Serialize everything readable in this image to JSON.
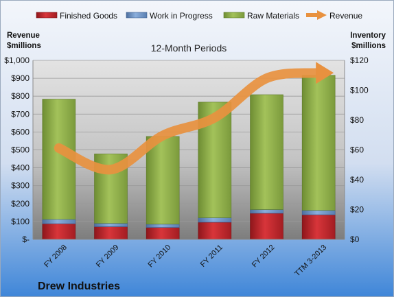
{
  "legend": {
    "items": [
      {
        "label": "Finished Goods",
        "color": "#c0272d",
        "kind": "bar"
      },
      {
        "label": "Work in Progress",
        "color": "#6f95cc",
        "kind": "bar"
      },
      {
        "label": "Raw Materials",
        "color": "#8fb04a",
        "kind": "bar"
      },
      {
        "label": "Revenue",
        "color": "#e8913f",
        "kind": "arrow"
      }
    ]
  },
  "footer": {
    "company": "Drew Industries"
  },
  "chart_data": {
    "type": "bar",
    "stacked": true,
    "title": "12-Month Periods",
    "ylabel_left": "Revenue $millions",
    "ylabel_left_lines": [
      "Revenue",
      "$millions"
    ],
    "ylabel_right": "Inventory $millions",
    "ylabel_right_lines": [
      "Inventory",
      "$millions"
    ],
    "categories": [
      "FY 2008",
      "FY 2009",
      "FY 2010",
      "FY 2011",
      "FY 2012",
      "TTM 3-2013"
    ],
    "series": [
      {
        "name": "Finished Goods",
        "axis": "right",
        "values": [
          10.5,
          8.5,
          8.0,
          11.5,
          17.5,
          16.5
        ]
      },
      {
        "name": "Work in Progress",
        "axis": "right",
        "values": [
          3.0,
          2.3,
          2.2,
          3.0,
          2.5,
          3.0
        ]
      },
      {
        "name": "Raw Materials",
        "axis": "right",
        "values": [
          80.5,
          46.5,
          58.8,
          77.5,
          77.0,
          90.5
        ]
      },
      {
        "name": "Revenue",
        "axis": "left",
        "type": "line",
        "values": [
          510,
          390,
          580,
          680,
          900,
          930
        ]
      }
    ],
    "y_left": {
      "min": 0,
      "max": 1000,
      "ticks": [
        "$-",
        "$100",
        "$200",
        "$300",
        "$400",
        "$500",
        "$600",
        "$700",
        "$800",
        "$900",
        "$1,000"
      ]
    },
    "y_right": {
      "min": 0,
      "max": 120,
      "ticks": [
        "$0",
        "$20",
        "$40",
        "$60",
        "$80",
        "$100",
        "$120"
      ]
    },
    "grid": true,
    "legend_position": "top"
  }
}
